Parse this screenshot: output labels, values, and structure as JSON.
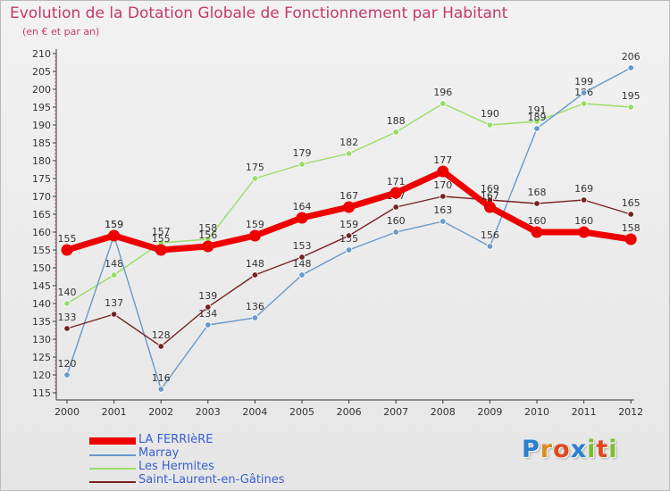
{
  "chart_data": {
    "type": "line",
    "title": "Evolution de la Dotation Globale de Fonctionnement par Habitant",
    "subtitle": "(en € et par an)",
    "x": [
      "2000",
      "2001",
      "2002",
      "2003",
      "2004",
      "2005",
      "2006",
      "2007",
      "2008",
      "2009",
      "2010",
      "2011",
      "2012"
    ],
    "ylim": [
      115,
      210
    ],
    "yticks": [
      115,
      120,
      125,
      130,
      135,
      140,
      145,
      150,
      155,
      160,
      165,
      170,
      175,
      180,
      185,
      190,
      195,
      200,
      205,
      210
    ],
    "grid": false,
    "series": [
      {
        "name": "LA FERRIèRE",
        "color": "#ee0000",
        "values": [
          155,
          159,
          155,
          156,
          159,
          164,
          167,
          171,
          177,
          167,
          160,
          160,
          158
        ]
      },
      {
        "name": "Marray",
        "color": "#6699cc",
        "values": [
          120,
          159,
          116,
          134,
          136,
          148,
          155,
          160,
          163,
          156,
          189,
          199,
          206
        ]
      },
      {
        "name": "Les Hermites",
        "color": "#99dd66",
        "values": [
          140,
          148,
          157,
          158,
          175,
          179,
          182,
          188,
          196,
          190,
          191,
          196,
          195
        ]
      },
      {
        "name": "Saint-Laurent-en-Gâtines",
        "color": "#772222",
        "values": [
          133,
          137,
          128,
          139,
          148,
          153,
          159,
          167,
          170,
          169,
          168,
          169,
          165
        ]
      }
    ]
  },
  "logo": {
    "text": "Proxiti",
    "letters": [
      "P",
      "r",
      "o",
      "x",
      "i",
      "t",
      "i"
    ],
    "colors": [
      "#2b7fd0",
      "#e08a1e",
      "#e0481e",
      "#2b7fd0",
      "#7abf2a",
      "#e0481e",
      "#7abf2a"
    ]
  }
}
